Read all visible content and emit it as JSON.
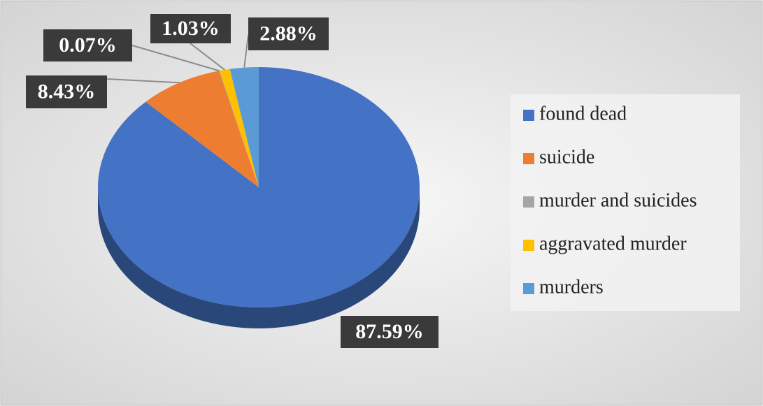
{
  "chart_data": {
    "type": "pie",
    "categories": [
      "found dead",
      "suicide",
      "murder and suicides",
      "aggravated murder",
      "murders"
    ],
    "values": [
      87.59,
      8.43,
      0.07,
      1.03,
      2.88
    ],
    "value_labels": [
      "87.59%",
      "8.43%",
      "0.07%",
      "1.03%",
      "2.88%"
    ],
    "colors": [
      "#4472c4",
      "#ed7d31",
      "#a5a5a5",
      "#ffc000",
      "#5b9bd5"
    ],
    "legend": "right"
  }
}
